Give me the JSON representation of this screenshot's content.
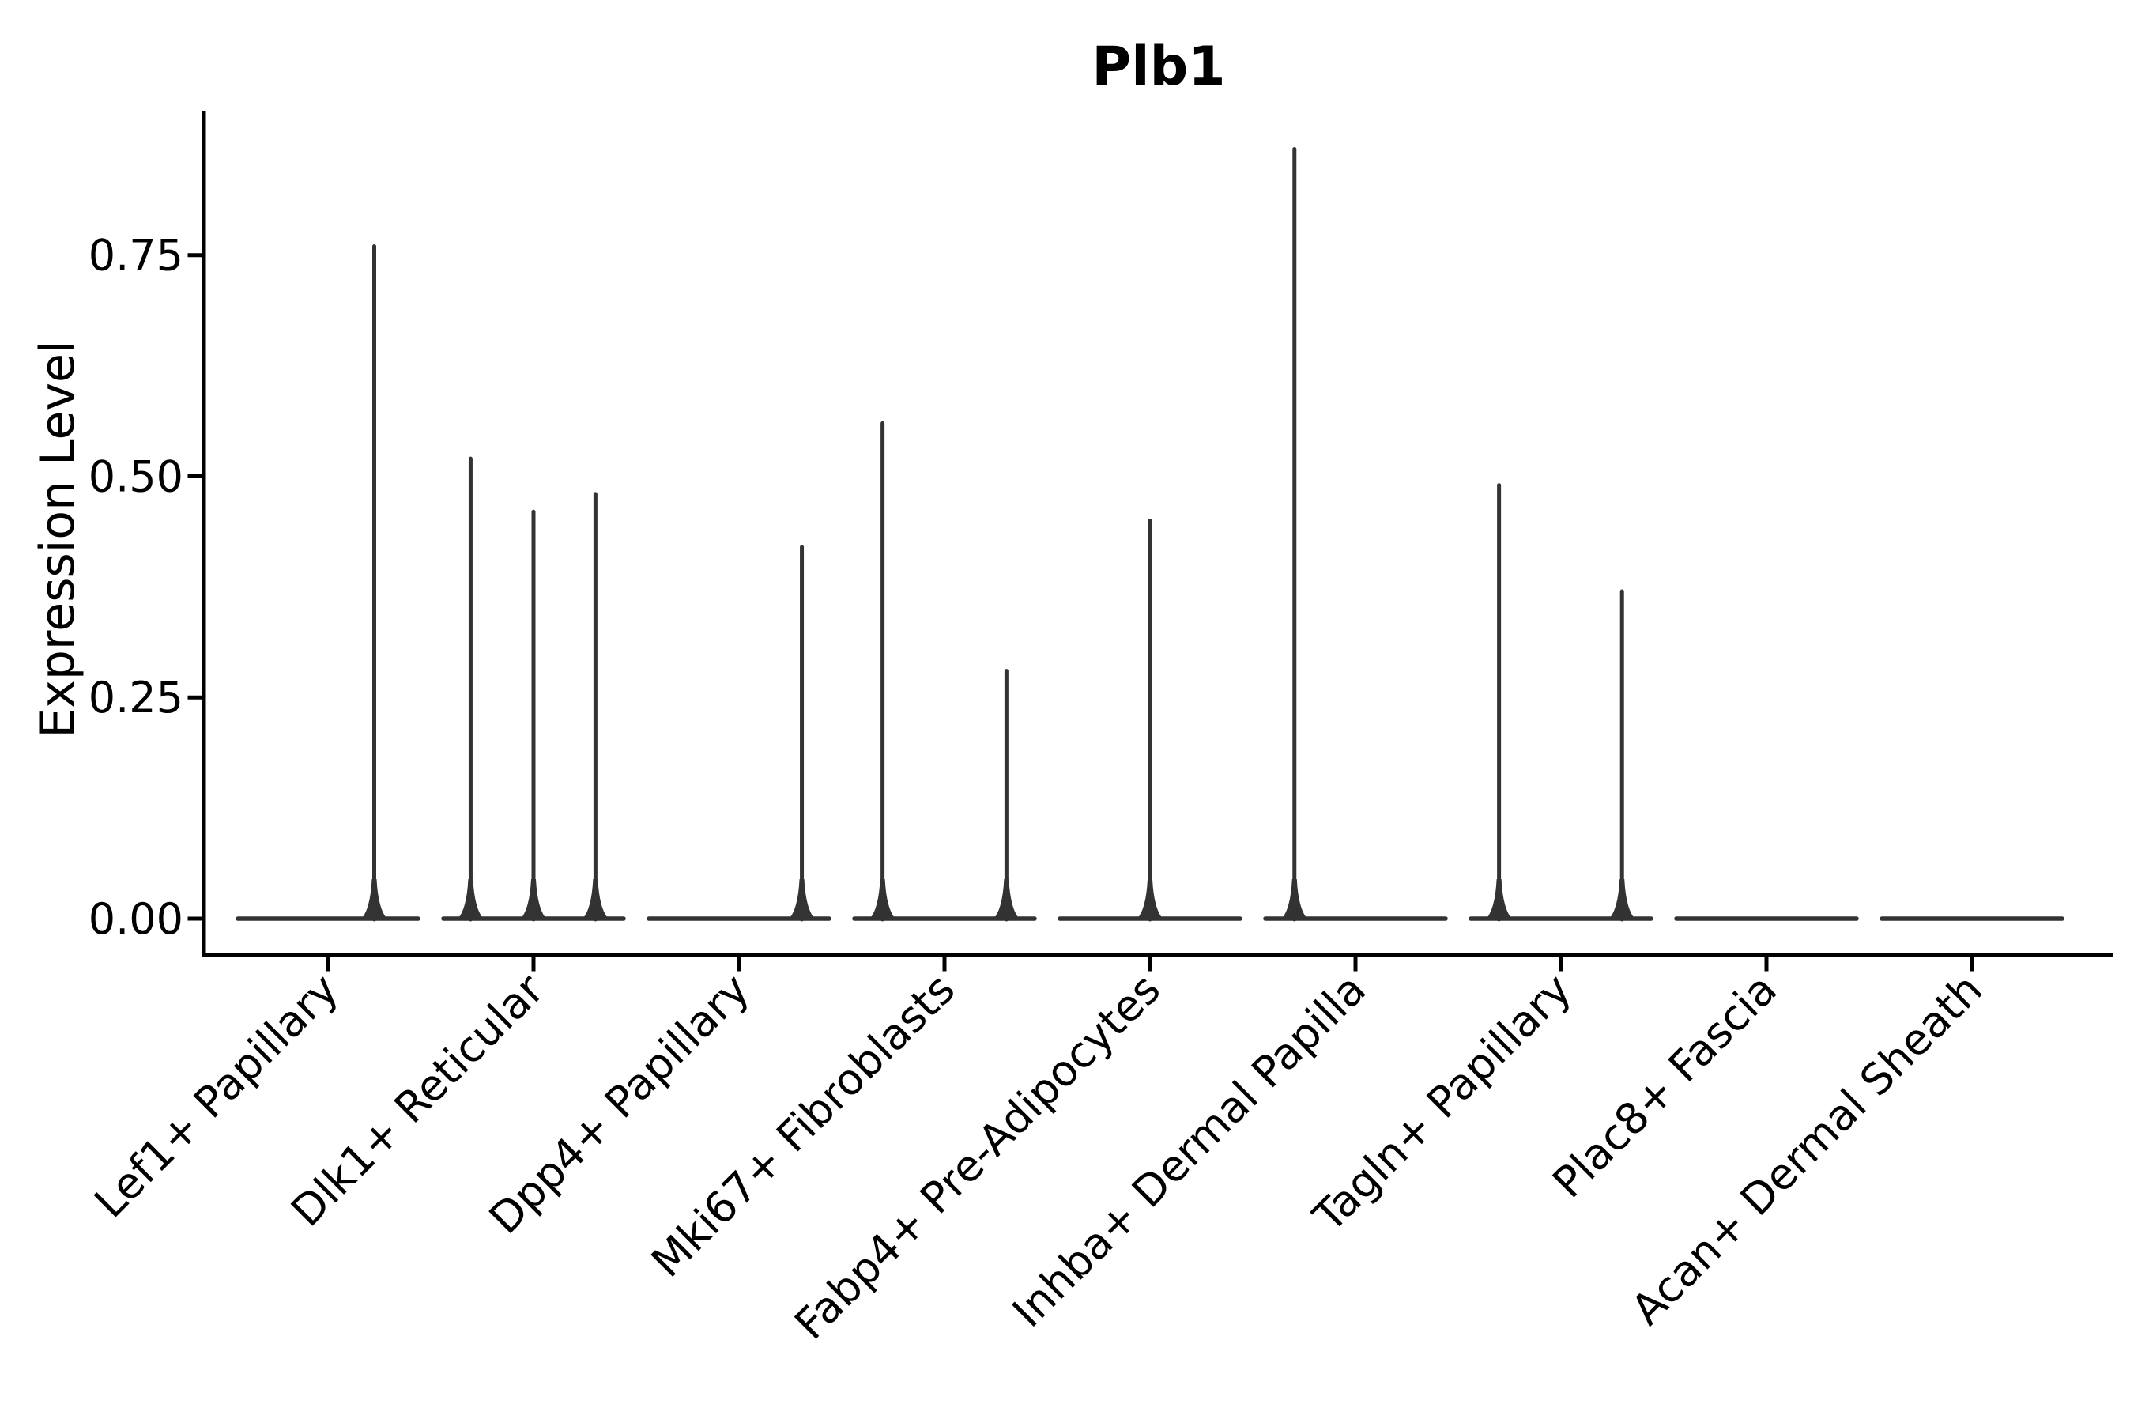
{
  "title": "Plb1",
  "colors": {
    "background": "#ffffff",
    "axis": "#000000",
    "text": "#000000",
    "violin": "#333333"
  },
  "chart_data": {
    "type": "violin",
    "title": "Plb1",
    "xlabel": "",
    "ylabel": "Expression Level",
    "grid": false,
    "legend": "none",
    "ylim": [
      -0.04,
      0.91
    ],
    "yticks": [
      {
        "value": 0.0,
        "label": "0.00"
      },
      {
        "value": 0.25,
        "label": "0.25"
      },
      {
        "value": 0.5,
        "label": "0.50"
      },
      {
        "value": 0.75,
        "label": "0.75"
      }
    ],
    "x_tick_rotation_deg": 45,
    "categories": [
      "Lef1+ Papillary",
      "Dlk1+ Reticular",
      "Dpp4+ Papillary",
      "Mki67+ Fibroblasts",
      "Fabp4+ Pre-Adipocytes",
      "Inhba+ Dermal Papilla",
      "Tagln+ Papillary",
      "Plac8+ Fascia",
      "Acan+ Dermal Sheath"
    ],
    "groups": [
      {
        "label": "Lef1+ Papillary",
        "baseline_value": 0.0,
        "spikes": [
          {
            "x_offset_frac": 0.5,
            "max_value": 0.76
          }
        ]
      },
      {
        "label": "Dlk1+ Reticular",
        "baseline_value": 0.0,
        "spikes": [
          {
            "x_offset_frac": -0.68,
            "max_value": 0.52
          },
          {
            "x_offset_frac": 0.0,
            "max_value": 0.46
          },
          {
            "x_offset_frac": 0.67,
            "max_value": 0.48
          }
        ]
      },
      {
        "label": "Dpp4+ Papillary",
        "baseline_value": 0.0,
        "spikes": [
          {
            "x_offset_frac": 0.68,
            "max_value": 0.42
          }
        ]
      },
      {
        "label": "Mki67+ Fibroblasts",
        "baseline_value": 0.0,
        "spikes": [
          {
            "x_offset_frac": -0.67,
            "max_value": 0.56
          },
          {
            "x_offset_frac": 0.67,
            "max_value": 0.28
          }
        ]
      },
      {
        "label": "Fabp4+ Pre-Adipocytes",
        "baseline_value": 0.0,
        "spikes": [
          {
            "x_offset_frac": 0.0,
            "max_value": 0.45
          }
        ]
      },
      {
        "label": "Inhba+ Dermal Papilla",
        "baseline_value": 0.0,
        "spikes": [
          {
            "x_offset_frac": -0.66,
            "max_value": 0.87
          }
        ]
      },
      {
        "label": "Tagln+ Papillary",
        "baseline_value": 0.0,
        "spikes": [
          {
            "x_offset_frac": -0.67,
            "max_value": 0.49
          },
          {
            "x_offset_frac": 0.66,
            "max_value": 0.37
          }
        ]
      },
      {
        "label": "Plac8+ Fascia",
        "baseline_value": 0.0,
        "spikes": []
      },
      {
        "label": "Acan+ Dermal Sheath",
        "baseline_value": 0.0,
        "spikes": []
      }
    ]
  }
}
